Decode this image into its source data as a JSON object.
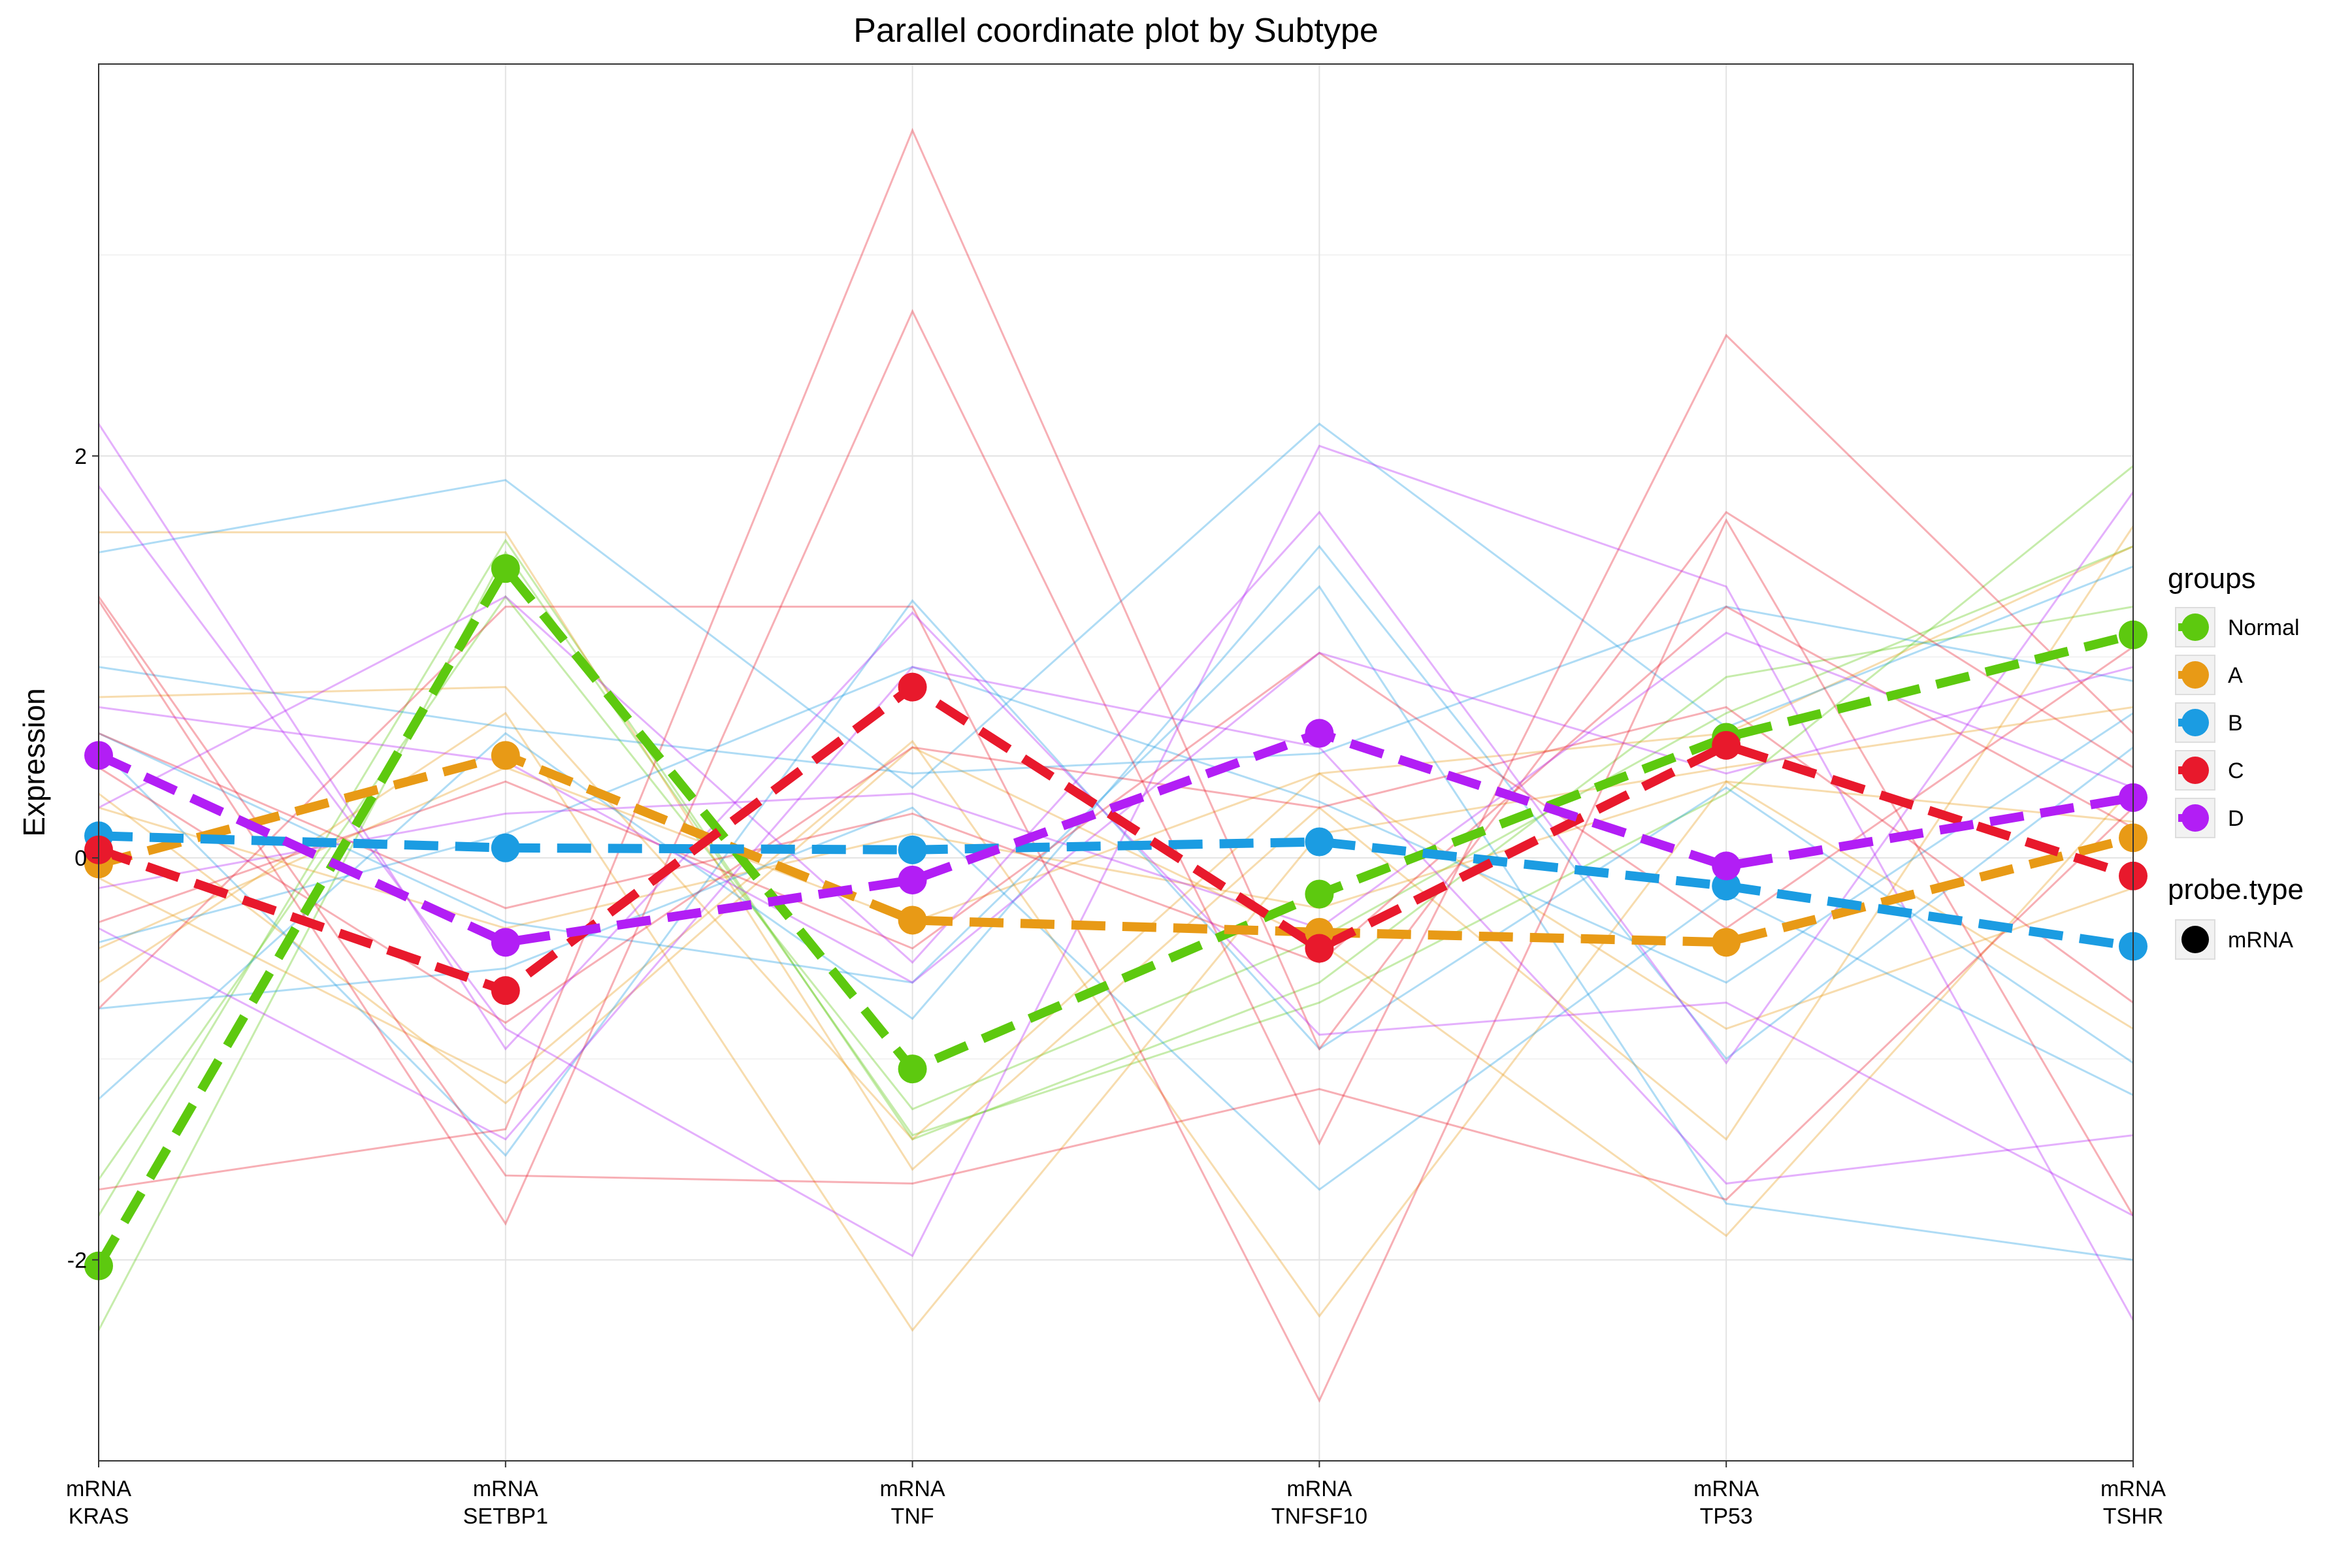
{
  "chart_data": {
    "type": "line",
    "title": "Parallel coordinate plot by Subtype",
    "xlabel": "",
    "ylabel": "Expression",
    "categories": [
      [
        "mRNA",
        "KRAS"
      ],
      [
        "mRNA",
        "SETBP1"
      ],
      [
        "mRNA",
        "TNF"
      ],
      [
        "mRNA",
        "TNFSF10"
      ],
      [
        "mRNA",
        "TP53"
      ],
      [
        "mRNA",
        "TSHR"
      ]
    ],
    "ylim": [
      -3.0,
      3.95
    ],
    "yticks": [
      -2,
      0,
      2
    ],
    "ytick_labels": [
      "-2",
      "0",
      "2"
    ],
    "grid": true,
    "colors": {
      "Normal": "#5DC90F",
      "A": "#E89A16",
      "B": "#1B9CE2",
      "C": "#E8192C",
      "D": "#B21EF5"
    },
    "series": [
      {
        "name": "Normal",
        "values": [
          -2.03,
          1.44,
          -1.05,
          -0.18,
          0.6,
          1.11
        ]
      },
      {
        "name": "A",
        "values": [
          -0.03,
          0.51,
          -0.31,
          -0.37,
          -0.42,
          0.1
        ]
      },
      {
        "name": "B",
        "values": [
          0.11,
          0.05,
          0.04,
          0.08,
          -0.14,
          -0.44
        ]
      },
      {
        "name": "C",
        "values": [
          0.04,
          -0.66,
          0.85,
          -0.45,
          0.56,
          -0.09
        ]
      },
      {
        "name": "D",
        "values": [
          0.51,
          -0.42,
          -0.11,
          0.62,
          -0.04,
          0.3
        ]
      }
    ],
    "individual_lines": [
      {
        "group": "Normal",
        "values": [
          -2.35,
          1.52,
          -1.38,
          -0.72,
          0.32,
          1.95
        ]
      },
      {
        "group": "Normal",
        "values": [
          -1.78,
          1.58,
          -1.4,
          -0.62,
          0.9,
          1.25
        ]
      },
      {
        "group": "Normal",
        "values": [
          -1.6,
          1.3,
          -1.25,
          -0.4,
          0.72,
          1.55
        ]
      },
      {
        "group": "A",
        "values": [
          0.8,
          0.85,
          -1.4,
          0.42,
          0.62,
          1.55
        ]
      },
      {
        "group": "A",
        "values": [
          1.62,
          1.62,
          -1.55,
          0.25,
          -1.4,
          1.65
        ]
      },
      {
        "group": "A",
        "values": [
          -0.62,
          0.72,
          -2.35,
          0.12,
          0.45,
          0.75
        ]
      },
      {
        "group": "A",
        "values": [
          -0.1,
          -1.12,
          0.58,
          -2.28,
          0.38,
          -0.85
        ]
      },
      {
        "group": "A",
        "values": [
          0.32,
          -1.22,
          0.55,
          -0.42,
          -1.88,
          0.35
        ]
      },
      {
        "group": "A",
        "values": [
          -0.45,
          0.45,
          -0.32,
          0.42,
          -0.85,
          -0.15
        ]
      },
      {
        "group": "A",
        "values": [
          0.25,
          -0.35,
          0.12,
          -0.25,
          0.38,
          0.18
        ]
      },
      {
        "group": "B",
        "values": [
          1.52,
          1.88,
          0.35,
          2.16,
          0.65,
          1.45
        ]
      },
      {
        "group": "B",
        "values": [
          0.95,
          0.65,
          0.42,
          0.52,
          1.25,
          0.88
        ]
      },
      {
        "group": "B",
        "values": [
          -1.2,
          0.62,
          -0.8,
          1.55,
          -1.0,
          0.55
        ]
      },
      {
        "group": "B",
        "values": [
          0.55,
          -1.48,
          1.28,
          -0.95,
          0.35,
          -1.02
        ]
      },
      {
        "group": "B",
        "values": [
          -0.75,
          -0.55,
          0.25,
          -1.65,
          -0.18,
          -1.18
        ]
      },
      {
        "group": "B",
        "values": [
          0.62,
          -0.32,
          -0.62,
          1.35,
          -1.72,
          -2.0
        ]
      },
      {
        "group": "B",
        "values": [
          -0.42,
          0.12,
          0.95,
          0.28,
          -0.62,
          0.72
        ]
      },
      {
        "group": "C",
        "values": [
          -1.65,
          -1.35,
          3.62,
          -0.95,
          1.72,
          0.45
        ]
      },
      {
        "group": "C",
        "values": [
          1.28,
          -1.82,
          2.72,
          -1.42,
          2.6,
          0.62
        ]
      },
      {
        "group": "C",
        "values": [
          -0.75,
          1.25,
          1.25,
          -2.7,
          1.68,
          -1.78
        ]
      },
      {
        "group": "C",
        "values": [
          1.3,
          -1.58,
          -1.62,
          -1.15,
          -1.7,
          0.25
        ]
      },
      {
        "group": "C",
        "values": [
          0.45,
          -0.82,
          0.55,
          0.25,
          0.75,
          -0.72
        ]
      },
      {
        "group": "C",
        "values": [
          -0.32,
          0.38,
          -0.45,
          1.02,
          -0.35,
          1.05
        ]
      },
      {
        "group": "C",
        "values": [
          0.62,
          -0.25,
          0.22,
          -0.52,
          1.25,
          0.15
        ]
      },
      {
        "group": "D",
        "values": [
          2.16,
          -0.95,
          1.22,
          -0.88,
          -0.72,
          -1.78
        ]
      },
      {
        "group": "D",
        "values": [
          1.85,
          -0.85,
          -1.98,
          2.05,
          1.35,
          -2.3
        ]
      },
      {
        "group": "D",
        "values": [
          0.25,
          1.3,
          -0.52,
          1.72,
          -1.02,
          1.82
        ]
      },
      {
        "group": "D",
        "values": [
          -0.35,
          -1.4,
          0.95,
          0.55,
          -1.62,
          -1.38
        ]
      },
      {
        "group": "D",
        "values": [
          0.75,
          0.48,
          -0.62,
          1.02,
          0.42,
          0.95
        ]
      },
      {
        "group": "D",
        "values": [
          -0.15,
          0.22,
          0.32,
          -0.35,
          1.12,
          0.35
        ]
      }
    ],
    "legend": {
      "position": "right",
      "groups_title": "groups",
      "groups": [
        "Normal",
        "A",
        "B",
        "C",
        "D"
      ],
      "probe_title": "probe.type",
      "probe_items": [
        "mRNA"
      ]
    }
  }
}
